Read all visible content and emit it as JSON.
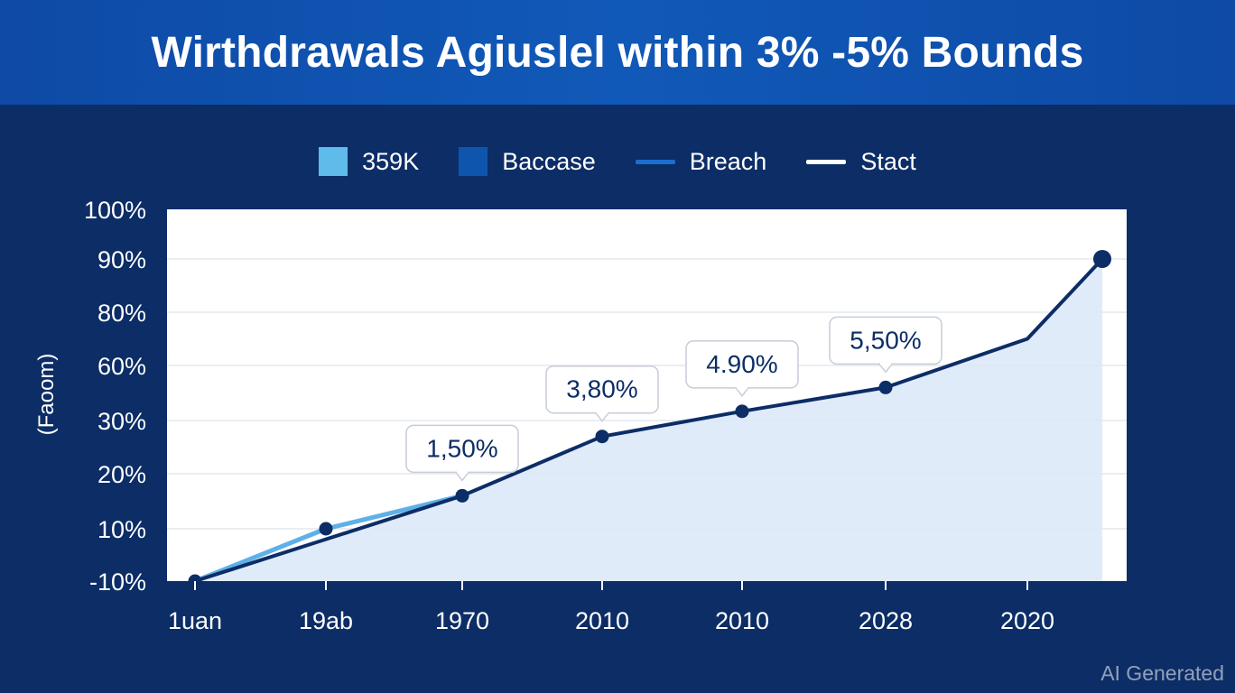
{
  "header": {
    "title": "Wirthdrawals Agiuslel within 3% -5% Bounds"
  },
  "watermark": "AI Generated",
  "colors": {
    "background": "#0c2d66",
    "title_bar": "#1159b8",
    "plot_bg": "#ffffff",
    "area_fill": "#dbe8f8",
    "main_line": "#0c2d66",
    "light_line": "#5fb0e8"
  },
  "chart_data": {
    "type": "line",
    "title": "Wirthdrawals Agiuslel within 3% -5% Bounds",
    "ylabel": "(Faoom)",
    "xlabel": "",
    "legend": [
      {
        "label": "359K",
        "kind": "box",
        "color": "#5fbbe9"
      },
      {
        "label": "Baccase",
        "kind": "box",
        "color": "#0e56ad"
      },
      {
        "label": "Breach",
        "kind": "line",
        "color": "#1b6fd0"
      },
      {
        "label": "Stact",
        "kind": "line",
        "color": "#ffffff"
      }
    ],
    "legend_position": "top-center",
    "y_ticks": [
      "100%",
      "90%",
      "80%",
      "60%",
      "30%",
      "20%",
      "10%",
      "-10%"
    ],
    "x_ticks": [
      "1uan",
      "19ab",
      "1970",
      "2010",
      "2010",
      "2028",
      "2020"
    ],
    "grid": true,
    "series": [
      {
        "style": "main",
        "color": "#0c2d66",
        "values": [
          -10,
          6,
          16,
          27,
          35,
          48,
          70,
          90
        ]
      },
      {
        "style": "light",
        "color": "#5fb0e8",
        "values": [
          -10,
          10,
          16
        ]
      }
    ],
    "markers": [
      {
        "series": 0,
        "index": 2
      },
      {
        "series": 0,
        "index": 3
      },
      {
        "series": 0,
        "index": 4
      },
      {
        "series": 0,
        "index": 5
      },
      {
        "series": 0,
        "index": 7
      },
      {
        "series": 1,
        "index": 0
      },
      {
        "series": 1,
        "index": 1
      }
    ],
    "annotations": [
      {
        "text": "1,50%",
        "series": 0,
        "index": 2
      },
      {
        "text": "3,80%",
        "series": 0,
        "index": 3
      },
      {
        "text": "4.90%",
        "series": 0,
        "index": 4
      },
      {
        "text": "5,50%",
        "series": 0,
        "index": 5
      }
    ]
  }
}
